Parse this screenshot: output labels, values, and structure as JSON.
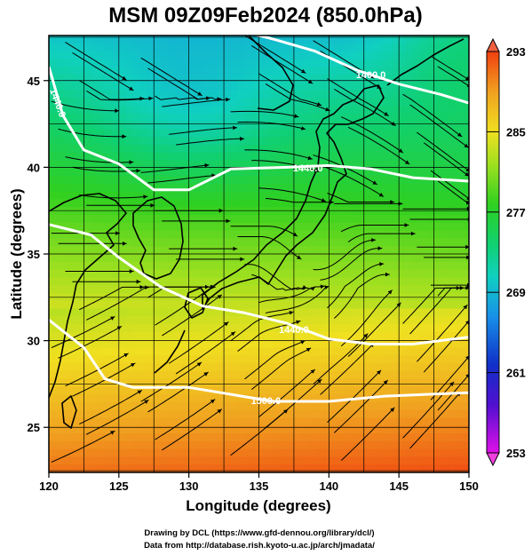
{
  "title": "MSM 09Z09Feb2024 (850.0hPa)",
  "credit": {
    "line1": "Drawing by DCL (https://www.gfd-dennou.org/library/dcl/)",
    "line2": "Data from http://database.rish.kyoto-u.ac.jp/arch/jmadata/"
  },
  "chart_data": {
    "type": "heatmap",
    "xlabel": "Longitude (degrees)",
    "ylabel": "Latitude  (degrees)",
    "xlim": [
      120,
      150
    ],
    "ylim": [
      22.4,
      47.6
    ],
    "x_ticks": [
      "120",
      "125",
      "130",
      "135",
      "140",
      "145",
      "150"
    ],
    "y_ticks": [
      "25",
      "30",
      "35",
      "40",
      "45"
    ],
    "grid": true,
    "colorbar": {
      "min": 253,
      "max": 293,
      "ticks": [
        "253",
        "261",
        "269",
        "277",
        "285",
        "293"
      ],
      "position": "right"
    },
    "shading_field": "temperature (K)",
    "overlay": "streamlines (wind)",
    "contours": [
      {
        "label": "1400.0",
        "points": [
          [
            132,
            48.2
          ],
          [
            136,
            47.4
          ],
          [
            139,
            46.7
          ],
          [
            142,
            45.6
          ],
          [
            145,
            44.8
          ],
          [
            148,
            44.2
          ],
          [
            150,
            43.7
          ]
        ]
      },
      {
        "label": "1440.0",
        "points": [
          [
            120,
            45.8
          ],
          [
            121,
            43.0
          ],
          [
            122.5,
            41.0
          ],
          [
            125,
            40.2
          ],
          [
            127.5,
            38.7
          ],
          [
            130,
            38.7
          ],
          [
            133,
            39.9
          ],
          [
            137,
            40.0
          ],
          [
            140,
            40.1
          ],
          [
            143,
            39.9
          ],
          [
            146,
            39.4
          ],
          [
            150,
            39.2
          ]
        ]
      },
      {
        "label": "1440.0",
        "points": [
          [
            120,
            36.7
          ],
          [
            123,
            36.1
          ],
          [
            125,
            34.8
          ],
          [
            128,
            33.1
          ],
          [
            131,
            32.0
          ],
          [
            134,
            31.6
          ],
          [
            137,
            31.0
          ],
          [
            140,
            30.1
          ],
          [
            143,
            29.8
          ],
          [
            146,
            29.8
          ],
          [
            150,
            30.2
          ]
        ]
      },
      {
        "label": "1500.0",
        "points": [
          [
            120,
            31.2
          ],
          [
            122.5,
            29.6
          ],
          [
            124,
            27.8
          ],
          [
            126,
            27.3
          ],
          [
            130,
            27.3
          ],
          [
            133,
            26.9
          ],
          [
            136,
            26.5
          ],
          [
            140,
            26.5
          ],
          [
            144,
            26.8
          ],
          [
            147,
            26.9
          ],
          [
            150,
            27.0
          ]
        ]
      }
    ],
    "contour_label_positions": [
      [
        143,
        45.3
      ],
      [
        138.5,
        39.9
      ],
      [
        137.5,
        30.6
      ],
      [
        135.5,
        26.5
      ],
      [
        120.6,
        43.7
      ]
    ]
  }
}
